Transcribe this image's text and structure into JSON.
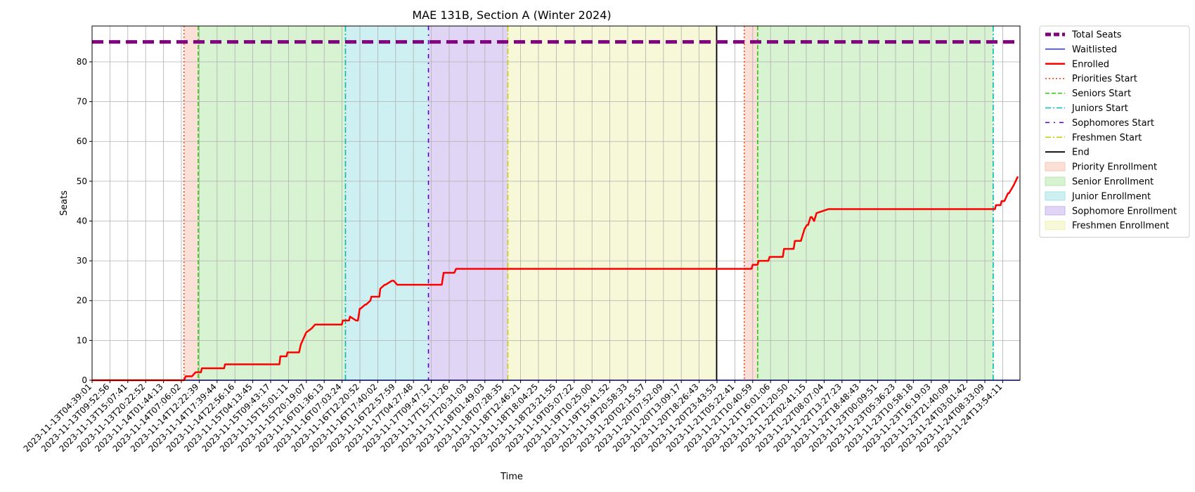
{
  "chart_data": {
    "type": "line",
    "title": "MAE 131B, Section A (Winter 2024)",
    "xlabel": "Time",
    "ylabel": "Seats",
    "ylim": [
      0,
      89
    ],
    "yticks": [
      0,
      10,
      20,
      30,
      40,
      50,
      60,
      70,
      80
    ],
    "grid": true,
    "legend_position": "outside-right",
    "xticks": [
      "2023-11-13T04:39:01",
      "2023-11-13T09:52:56",
      "2023-11-13T15:07:41",
      "2023-11-13T20:22:52",
      "2023-11-14T01:44:13",
      "2023-11-14T07:06:02",
      "2023-11-14T12:22:39",
      "2023-11-14T17:39:44",
      "2023-11-14T22:56:16",
      "2023-11-15T04:13:45",
      "2023-11-15T09:43:17",
      "2023-11-15T15:01:11",
      "2023-11-15T20:19:07",
      "2023-11-16T01:36:13",
      "2023-11-16T07:03:24",
      "2023-11-16T12:20:52",
      "2023-11-16T17:40:02",
      "2023-11-16T22:57:59",
      "2023-11-17T04:27:48",
      "2023-11-17T09:47:12",
      "2023-11-17T15:11:26",
      "2023-11-17T20:31:03",
      "2023-11-18T01:49:03",
      "2023-11-18T07:28:35",
      "2023-11-18T12:46:21",
      "2023-11-18T18:04:25",
      "2023-11-18T23:21:55",
      "2023-11-19T05:07:22",
      "2023-11-19T10:25:00",
      "2023-11-19T15:41:52",
      "2023-11-19T20:58:33",
      "2023-11-20T02:15:57",
      "2023-11-20T07:52:09",
      "2023-11-20T13:09:17",
      "2023-11-20T18:26:43",
      "2023-11-20T23:43:53",
      "2023-11-21T05:22:41",
      "2023-11-21T10:40:59",
      "2023-11-21T16:01:06",
      "2023-11-21T21:20:50",
      "2023-11-22T02:41:15",
      "2023-11-22T08:07:04",
      "2023-11-22T13:27:23",
      "2023-11-22T18:48:43",
      "2023-11-23T00:09:51",
      "2023-11-23T05:36:23",
      "2023-11-23T10:58:18",
      "2023-11-23T16:19:03",
      "2023-11-23T21:40:09",
      "2023-11-24T03:01:42",
      "2023-11-24T08:33:09",
      "2023-11-24T13:54:11"
    ],
    "x_range_ticks": [
      -0.0,
      52.3
    ],
    "series": [
      {
        "name": "Total Seats",
        "color": "#800080",
        "style": "dashed-thick",
        "x": [
          0,
          52.3
        ],
        "y": [
          85,
          85
        ]
      },
      {
        "name": "Waitlisted",
        "color": "#0000ff",
        "style": "solid-thin",
        "x": [
          0,
          52.3
        ],
        "y": [
          0,
          0
        ]
      },
      {
        "name": "Enrolled",
        "color": "#ff0000",
        "style": "solid",
        "x": [
          0,
          5.15,
          5.25,
          5.6,
          5.8,
          6.1,
          6.15,
          7.4,
          7.45,
          10.5,
          10.55,
          10.9,
          10.95,
          11.6,
          11.7,
          12.0,
          12.3,
          12.5,
          12.6,
          14.0,
          14.05,
          14.4,
          14.45,
          14.8,
          14.9,
          15.0,
          15.05,
          15.3,
          15.35,
          15.6,
          15.65,
          16.1,
          16.15,
          16.4,
          16.45,
          16.8,
          16.9,
          17.1,
          17.2,
          17.5,
          17.55,
          19.6,
          19.7,
          20.3,
          20.4,
          55.0
        ],
        "y": [
          0,
          0,
          1,
          1,
          2,
          2,
          3,
          3,
          4,
          4,
          6,
          6,
          7,
          7,
          9,
          12,
          13,
          14,
          14,
          14,
          15,
          15,
          16,
          15,
          15,
          18,
          18,
          19,
          19,
          20,
          21,
          21,
          23,
          24,
          24,
          25,
          25,
          24,
          24,
          24,
          24,
          24,
          27,
          27,
          28,
          28
        ]
      },
      {
        "name": "Priorities Start",
        "color": "#ff3300",
        "style": "dotted"
      },
      {
        "name": "Seniors Start",
        "color": "#22cc00",
        "style": "dashed"
      },
      {
        "name": "Juniors Start",
        "color": "#00bbbb",
        "style": "dashdot"
      },
      {
        "name": "Sophomores Start",
        "color": "#5500cc",
        "style": "dashdotdot"
      },
      {
        "name": "Freshmen Start",
        "color": "#cccc00",
        "style": "dashdot"
      },
      {
        "name": "End",
        "color": "#000000",
        "style": "solid"
      }
    ],
    "enrolled_phase2": {
      "x": [
        0.0,
        0.3,
        0.35,
        0.55,
        0.6,
        0.8,
        0.85,
        1.0,
        1.05,
        1.6,
        1.65,
        1.85,
        1.9,
        2.05,
        2.1,
        2.3,
        2.35,
        2.45,
        2.5,
        2.6,
        2.65,
        2.75,
        2.8,
        2.9,
        3.0,
        3.5,
        10.5,
        10.55,
        10.8,
        10.85,
        11.0,
        11.1,
        11.2,
        11.25,
        11.5,
        11.6,
        11.7,
        11.75
      ],
      "y": [
        28,
        28,
        29,
        29,
        30,
        30,
        30,
        30,
        31,
        31,
        33,
        33,
        33,
        33,
        35,
        35,
        35,
        37,
        38,
        39,
        39,
        41,
        41,
        40,
        42,
        43,
        43,
        44,
        44,
        45,
        45,
        46,
        47,
        47,
        49,
        50,
        51,
        51
      ]
    },
    "events": {
      "priorities_start": [
        5.15,
        36.55
      ],
      "seniors_start": [
        5.95,
        37.3
      ],
      "juniors_start": [
        14.2,
        50.5
      ],
      "sophomores_start": [
        18.85
      ],
      "freshmen_start": [
        23.3
      ],
      "end": [
        35.0
      ]
    },
    "shaded_regions": [
      {
        "name": "Priority Enrollment",
        "color": "#f5c6b6",
        "from": 5.15,
        "to": 5.95
      },
      {
        "name": "Senior Enrollment",
        "color": "#b7e9ab",
        "from": 5.95,
        "to": 14.2
      },
      {
        "name": "Junior Enrollment",
        "color": "#a5e4e8",
        "from": 14.2,
        "to": 18.85
      },
      {
        "name": "Sophomore Enrollment",
        "color": "#c8b3ef",
        "from": 18.85,
        "to": 23.3
      },
      {
        "name": "Freshmen Enrollment",
        "color": "#f1f2b7",
        "from": 23.3,
        "to": 35.0
      },
      {
        "name": "Priority Enrollment",
        "color": "#f5c6b6",
        "from": 36.55,
        "to": 37.3
      },
      {
        "name": "Senior Enrollment",
        "color": "#b7e9ab",
        "from": 37.3,
        "to": 50.5
      }
    ],
    "legend": [
      {
        "label": "Total Seats",
        "kind": "line",
        "color": "#800080",
        "dash": "8,4",
        "width": 5
      },
      {
        "label": "Waitlisted",
        "kind": "line",
        "color": "#0000ff",
        "dash": "",
        "width": 1.2
      },
      {
        "label": "Enrolled",
        "kind": "line",
        "color": "#ff0000",
        "dash": "",
        "width": 2.5
      },
      {
        "label": "Priorities Start",
        "kind": "line",
        "color": "#ff3300",
        "dash": "2,3",
        "width": 1.5
      },
      {
        "label": "Seniors Start",
        "kind": "line",
        "color": "#22cc00",
        "dash": "6,3",
        "width": 1.5
      },
      {
        "label": "Juniors Start",
        "kind": "line",
        "color": "#00bbbb",
        "dash": "8,3,2,3",
        "width": 1.5
      },
      {
        "label": "Sophomores Start",
        "kind": "line",
        "color": "#5500cc",
        "dash": "6,6,2,6",
        "width": 1.5
      },
      {
        "label": "Freshmen Start",
        "kind": "line",
        "color": "#cccc00",
        "dash": "8,3,2,3",
        "width": 1.5
      },
      {
        "label": "End",
        "kind": "line",
        "color": "#000000",
        "dash": "",
        "width": 1.8
      },
      {
        "label": "Priority Enrollment",
        "kind": "patch",
        "color": "#f5c6b6"
      },
      {
        "label": "Senior Enrollment",
        "kind": "patch",
        "color": "#b7e9ab"
      },
      {
        "label": "Junior Enrollment",
        "kind": "patch",
        "color": "#a5e4e8"
      },
      {
        "label": "Sophomore Enrollment",
        "kind": "patch",
        "color": "#c8b3ef"
      },
      {
        "label": "Freshmen Enrollment",
        "kind": "patch",
        "color": "#f1f2b7"
      }
    ]
  }
}
